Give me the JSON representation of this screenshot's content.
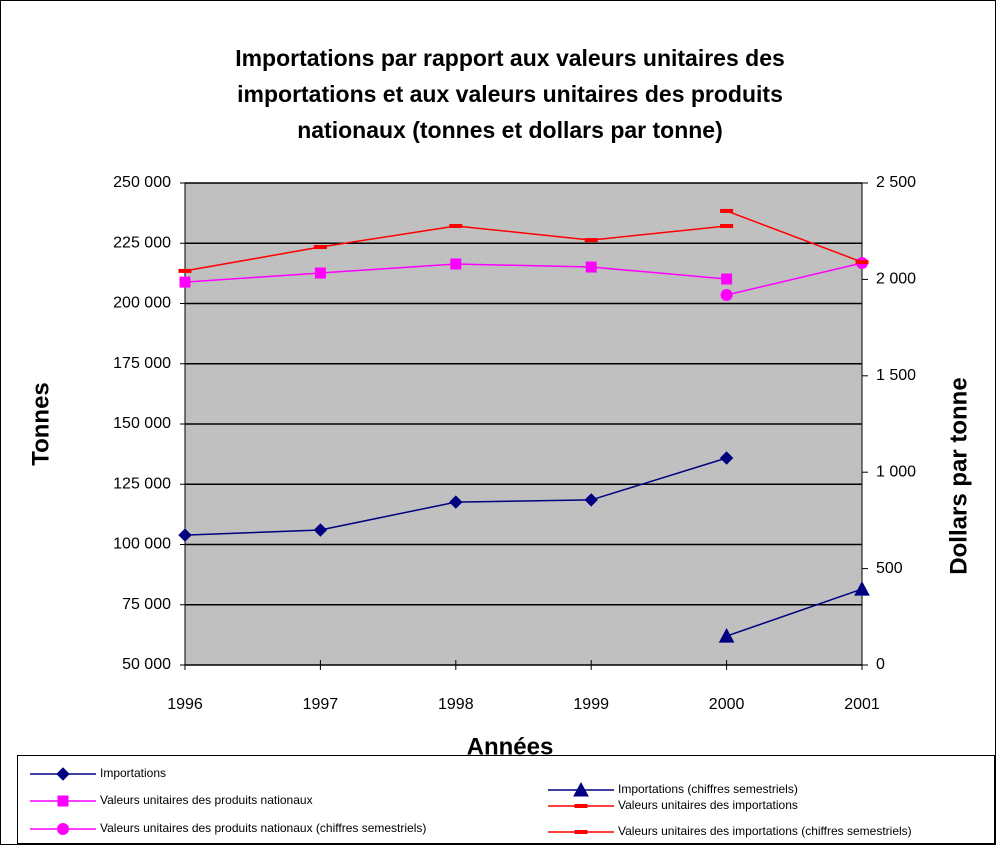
{
  "chart_data": {
    "type": "line",
    "title": [
      "Importations par rapport aux valeurs unitaires des",
      "importations et aux valeurs unitaires des produits",
      "nationaux (tonnes et dollars par tonne)"
    ],
    "xlabel": "Années",
    "ylabel": "Tonnes",
    "y2label": "Dollars par tonne",
    "xlim": [
      1996,
      2001
    ],
    "xticks": [
      1996,
      1997,
      1998,
      1999,
      2000,
      2001
    ],
    "ylim": [
      50000,
      250000
    ],
    "yticks": [
      {
        "value": 50000,
        "label": "50 000"
      },
      {
        "value": 75000,
        "label": "75 000"
      },
      {
        "value": 100000,
        "label": "100 000"
      },
      {
        "value": 125000,
        "label": "125 000"
      },
      {
        "value": 150000,
        "label": "150 000"
      },
      {
        "value": 175000,
        "label": "175 000"
      },
      {
        "value": 200000,
        "label": "200 000"
      },
      {
        "value": 225000,
        "label": "225 000"
      },
      {
        "value": 250000,
        "label": "250 000"
      }
    ],
    "y2lim": [
      0,
      2500
    ],
    "y2ticks": [
      0,
      500,
      {
        "value": 1000,
        "label": "1 000"
      },
      {
        "value": 1500,
        "label": "1 500"
      },
      {
        "value": 2000,
        "label": "2 000"
      },
      {
        "value": 2500,
        "label": "2 500"
      }
    ],
    "grid": true,
    "series": [
      {
        "name": "Importations",
        "color": "#000080",
        "marker": "diamond",
        "axis": "y",
        "x": [
          1996,
          1997,
          1998,
          1999,
          2000
        ],
        "values": [
          103900,
          106000,
          117600,
          118500,
          135900
        ]
      },
      {
        "name": "Importations  (chiffres semestriels)",
        "color": "#000080",
        "marker": "triangle",
        "axis": "y",
        "x": [
          2000,
          2001
        ],
        "values": [
          62000,
          81500
        ]
      },
      {
        "name": "Valeurs unitaires des produits nationaux",
        "color": "#ff00ff",
        "marker": "square",
        "axis": "y2",
        "x": [
          1996,
          1997,
          1998,
          1999,
          2000
        ],
        "values": [
          1986,
          2033,
          2080,
          2064,
          2002
        ]
      },
      {
        "name": "Valeurs unitaires des produits nationaux (chiffres semestriels)",
        "color": "#ff00ff",
        "marker": "circle",
        "axis": "y2",
        "x": [
          2000,
          2001
        ],
        "values": [
          1919,
          2085
        ]
      },
      {
        "name": "Valeurs unitaires des importations",
        "color": "#ff0000",
        "marker": "dash",
        "axis": "y2",
        "x": [
          1996,
          1997,
          1998,
          1999,
          2000
        ],
        "values": [
          2044,
          2168,
          2277,
          2204,
          2277
        ]
      },
      {
        "name": "Valeurs unitaires des importations (chiffres semestriels)",
        "color": "#ff0000",
        "marker": "dash",
        "axis": "y2",
        "x": [
          2000,
          2001
        ],
        "values": [
          2355,
          2090
        ]
      }
    ]
  }
}
